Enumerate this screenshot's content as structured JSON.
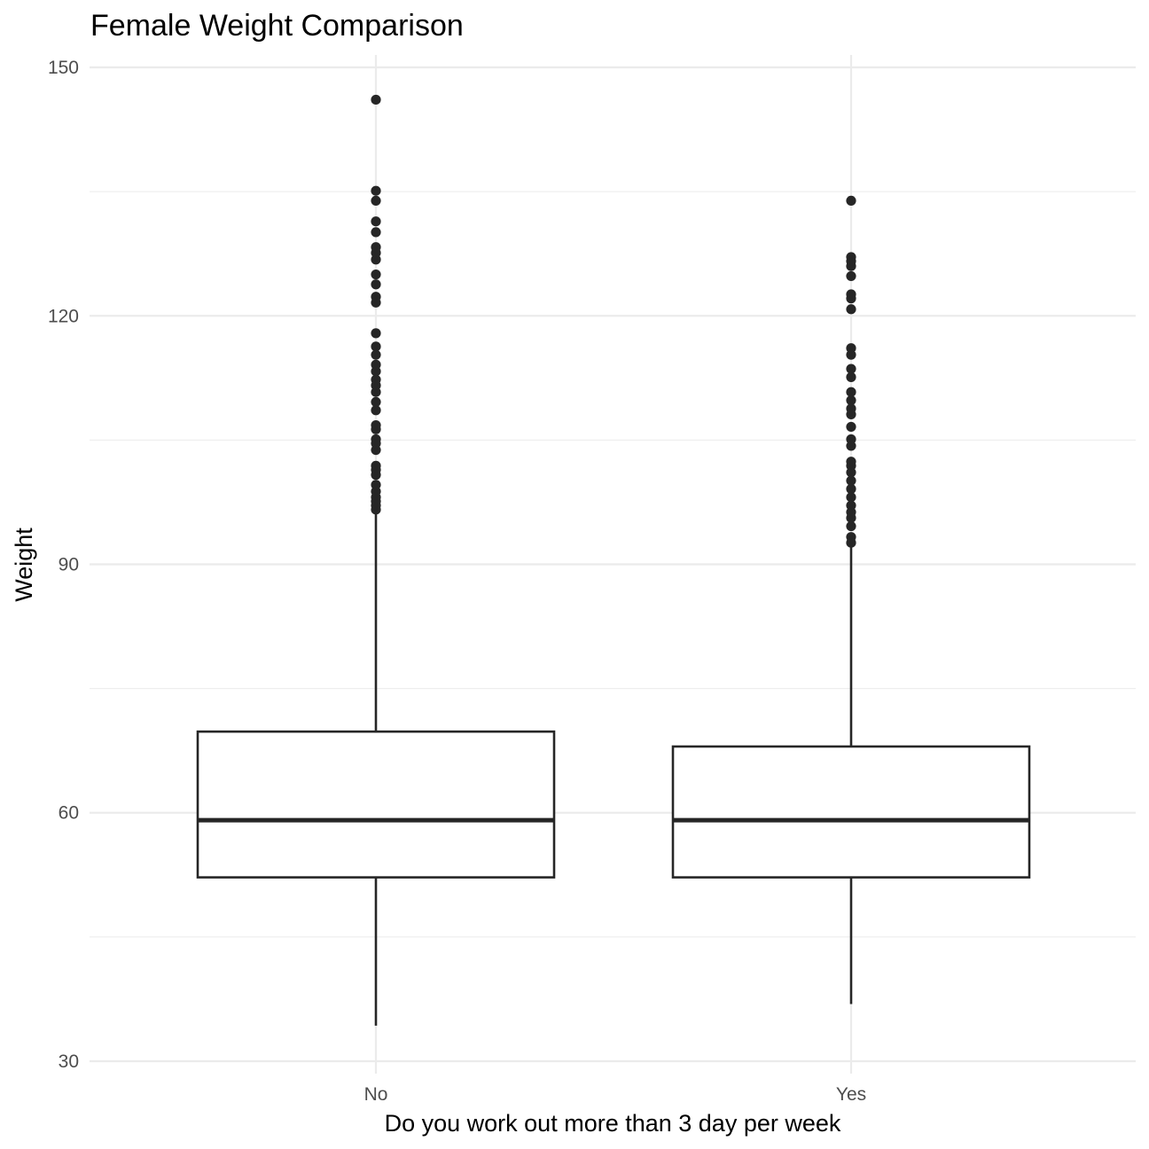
{
  "chart_data": {
    "type": "boxplot",
    "title": "Female Weight Comparison",
    "xlabel": "Do you work out more than 3 day per week",
    "ylabel": "Weight",
    "ylim": [
      28.5,
      151.5
    ],
    "yticks": [
      30,
      60,
      90,
      120,
      150
    ],
    "yminor": [
      45,
      75,
      105,
      135
    ],
    "grid": true,
    "legend": "none",
    "categories": [
      "No",
      "Yes"
    ],
    "boxes": [
      {
        "category": "No",
        "whisker_low": 34.3,
        "q1": 52.2,
        "median": 59.1,
        "q3": 69.8,
        "whisker_high": 96.3,
        "outliers": [
          96.6,
          97.1,
          97.6,
          98.1,
          98.8,
          99.6,
          100.8,
          101.4,
          101.9,
          103.8,
          104.6,
          105.1,
          106.3,
          106.8,
          108.6,
          109.6,
          110.8,
          111.6,
          112.3,
          113.3,
          114.1,
          115.3,
          116.3,
          117.9,
          121.6,
          122.3,
          123.8,
          125.0,
          126.8,
          127.6,
          128.3,
          130.1,
          131.4,
          133.9,
          135.1,
          146.1
        ]
      },
      {
        "category": "Yes",
        "whisker_low": 36.9,
        "q1": 52.2,
        "median": 59.1,
        "q3": 68.0,
        "whisker_high": 92.1,
        "outliers": [
          92.6,
          93.3,
          94.6,
          95.6,
          96.3,
          97.1,
          98.1,
          99.1,
          100.1,
          101.1,
          101.9,
          102.4,
          104.3,
          105.1,
          106.6,
          108.1,
          108.8,
          109.8,
          110.8,
          112.6,
          113.6,
          115.3,
          116.1,
          120.8,
          122.1,
          122.6,
          124.8,
          126.0,
          126.6,
          127.1,
          133.9
        ]
      }
    ]
  }
}
